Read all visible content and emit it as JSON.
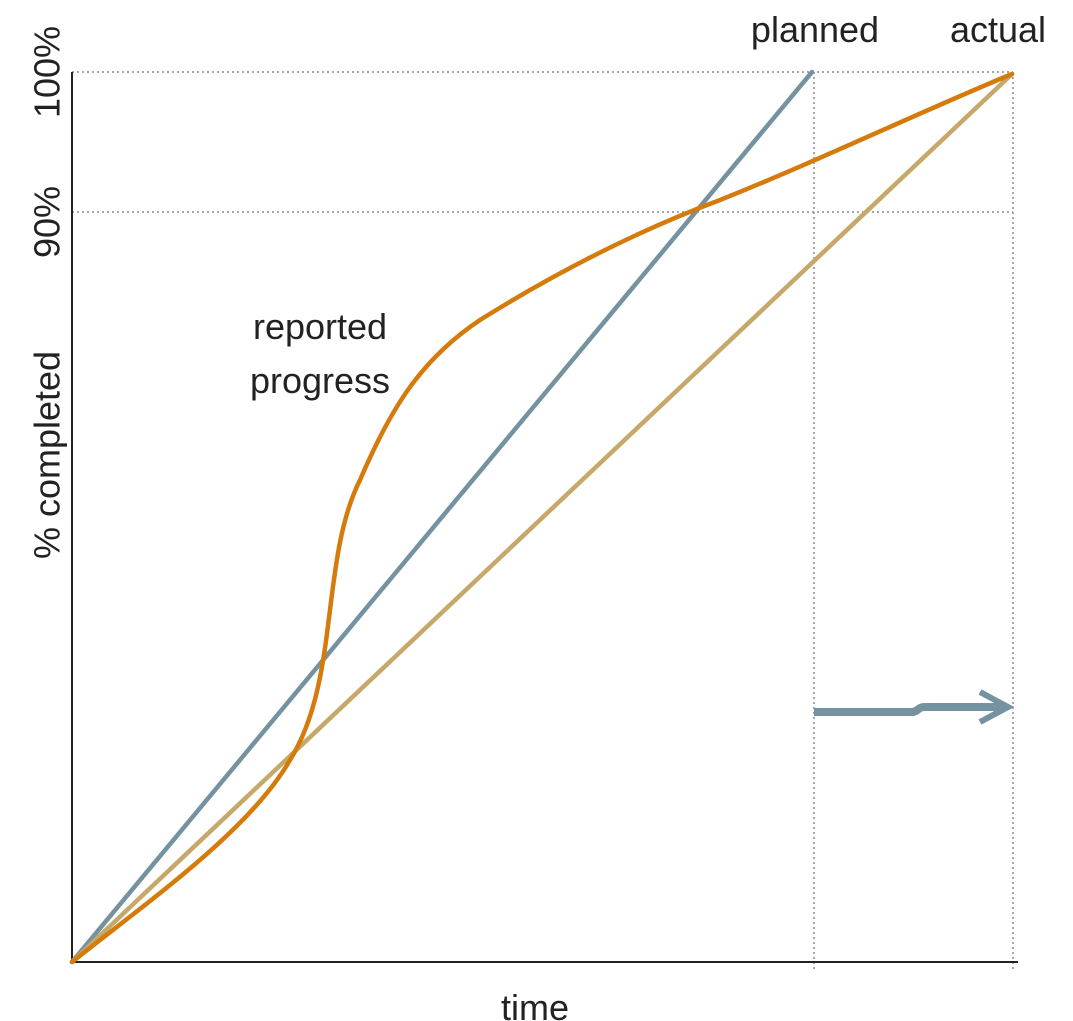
{
  "chart_data": {
    "type": "line",
    "title": "",
    "xlabel": "time",
    "ylabel": "% completed",
    "y_tick_labels": [
      "90%",
      "100%"
    ],
    "x_markers": [
      "planned",
      "actual"
    ],
    "annotations": [
      "reported",
      "progress"
    ],
    "grid": false,
    "colors": {
      "planned": "#7592a0",
      "actual": "#c6a86a",
      "reported": "#d47b0c",
      "axis": "#222222",
      "guide": "#8a8a8a"
    }
  }
}
